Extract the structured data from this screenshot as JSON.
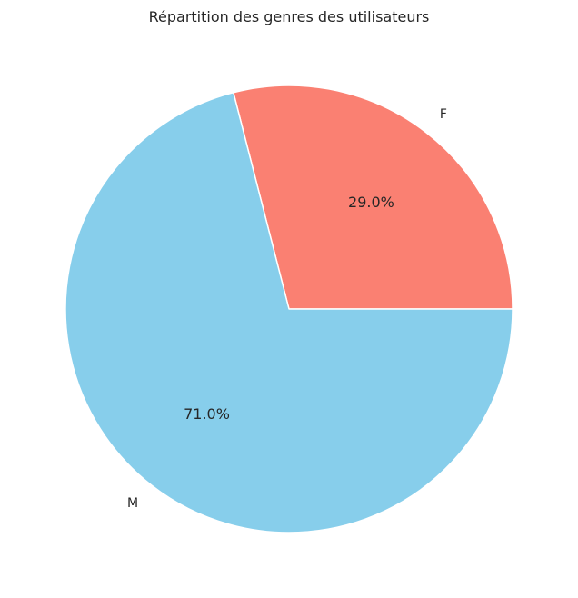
{
  "chart_data": {
    "type": "pie",
    "title": "Répartition des genres des utilisateurs",
    "slices": [
      {
        "label": "F",
        "value": 29.0,
        "pct_label": "29.0%",
        "color": "#fa8072"
      },
      {
        "label": "M",
        "value": 71.0,
        "pct_label": "71.0%",
        "color": "#87ceeb"
      }
    ],
    "start_angle_deg": 0,
    "direction": "counterclockwise",
    "wedge_edge_color": "#ffffff"
  }
}
